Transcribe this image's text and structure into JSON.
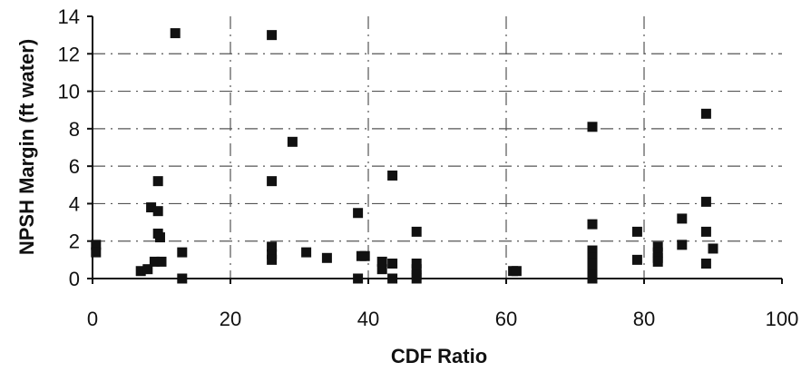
{
  "chart_data": {
    "type": "scatter",
    "title": "",
    "xlabel": "CDF Ratio",
    "ylabel": "NPSH Margin (ft water)",
    "xlim": [
      0,
      100
    ],
    "ylim": [
      0,
      14
    ],
    "xticks": [
      0,
      20,
      40,
      60,
      80,
      100
    ],
    "yticks": [
      0,
      2,
      4,
      6,
      8,
      10,
      12,
      14
    ],
    "grid": true,
    "grid_style": "dash-dot",
    "legend": "none",
    "marker": "square",
    "colors": {
      "marker": "#111111",
      "axis": "#111111",
      "grid": "#555555"
    },
    "series": [
      {
        "x": [
          0.5,
          0.5,
          7,
          8,
          8.5,
          9,
          9.5,
          9.5,
          9.5,
          9.8,
          10,
          12,
          13,
          13,
          26,
          26,
          26,
          26,
          26,
          29,
          31,
          34,
          38.5,
          38.5,
          39,
          39.5,
          42,
          42,
          43.5,
          43.5,
          43.5,
          47,
          47,
          47,
          47,
          47,
          61,
          61.5,
          72.5,
          72.5,
          72.5,
          72.5,
          72.5,
          72.5,
          72.5,
          72.5,
          79,
          79,
          82,
          82,
          82,
          82,
          85.5,
          85.5,
          89,
          89,
          89,
          89,
          90
        ],
        "y": [
          1.8,
          1.4,
          0.4,
          0.5,
          3.8,
          0.9,
          3.6,
          2.4,
          5.2,
          2.2,
          0.9,
          13.1,
          1.4,
          0.0,
          13.0,
          5.2,
          1.7,
          1.3,
          1.0,
          7.3,
          1.4,
          1.1,
          3.5,
          0.0,
          1.2,
          1.2,
          0.9,
          0.5,
          5.5,
          0.8,
          0.0,
          2.5,
          0.8,
          0.5,
          0.2,
          0.0,
          0.4,
          0.4,
          8.1,
          2.9,
          1.5,
          1.1,
          0.8,
          0.5,
          0.2,
          0.0,
          2.5,
          1.0,
          1.7,
          1.4,
          1.1,
          0.9,
          3.2,
          1.8,
          8.8,
          4.1,
          2.5,
          0.8,
          1.6
        ]
      }
    ]
  }
}
